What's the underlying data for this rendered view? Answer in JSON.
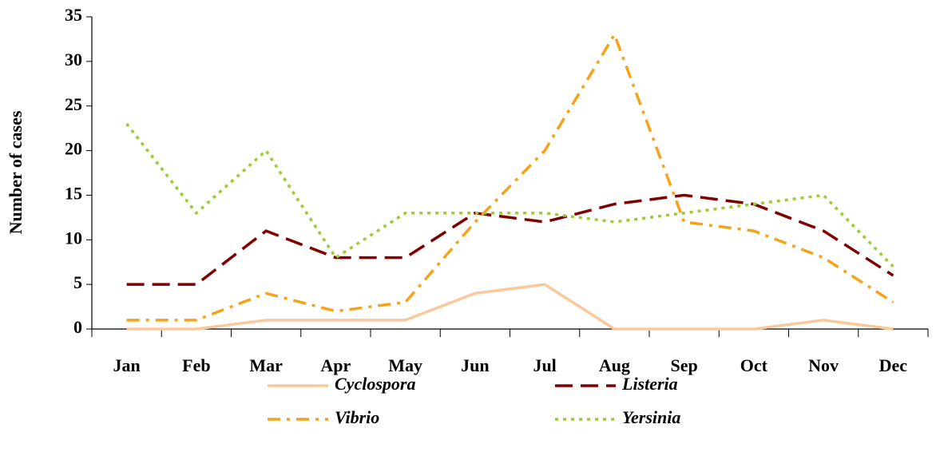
{
  "chart_data": {
    "type": "line",
    "y_label": "Number of cases",
    "categories": [
      "Jan",
      "Feb",
      "Mar",
      "Apr",
      "May",
      "Jun",
      "Jul",
      "Aug",
      "Sep",
      "Oct",
      "Nov",
      "Dec"
    ],
    "series": [
      {
        "name": "Cyclospora",
        "color": "#f9c89b",
        "style": "solid",
        "values": [
          0,
          0,
          1,
          1,
          1,
          4,
          5,
          0,
          0,
          0,
          1,
          0
        ]
      },
      {
        "name": "Listeria",
        "color": "#800000",
        "style": "dashed",
        "values": [
          5,
          5,
          11,
          8,
          8,
          13,
          12,
          14,
          15,
          14,
          11,
          6
        ]
      },
      {
        "name": "Vibrio",
        "color": "#f5a31a",
        "style": "dashdot",
        "values": [
          1,
          1,
          4,
          2,
          3,
          12,
          20,
          33,
          12,
          11,
          8,
          3
        ]
      },
      {
        "name": "Yersinia",
        "color": "#9acd32",
        "style": "dotted",
        "values": [
          23,
          13,
          20,
          8,
          13,
          13,
          13,
          12,
          13,
          14,
          15,
          7
        ]
      }
    ],
    "ylim": [
      0,
      35
    ],
    "yticks": [
      0,
      5,
      10,
      15,
      20,
      25,
      30,
      35
    ],
    "grid": false
  }
}
